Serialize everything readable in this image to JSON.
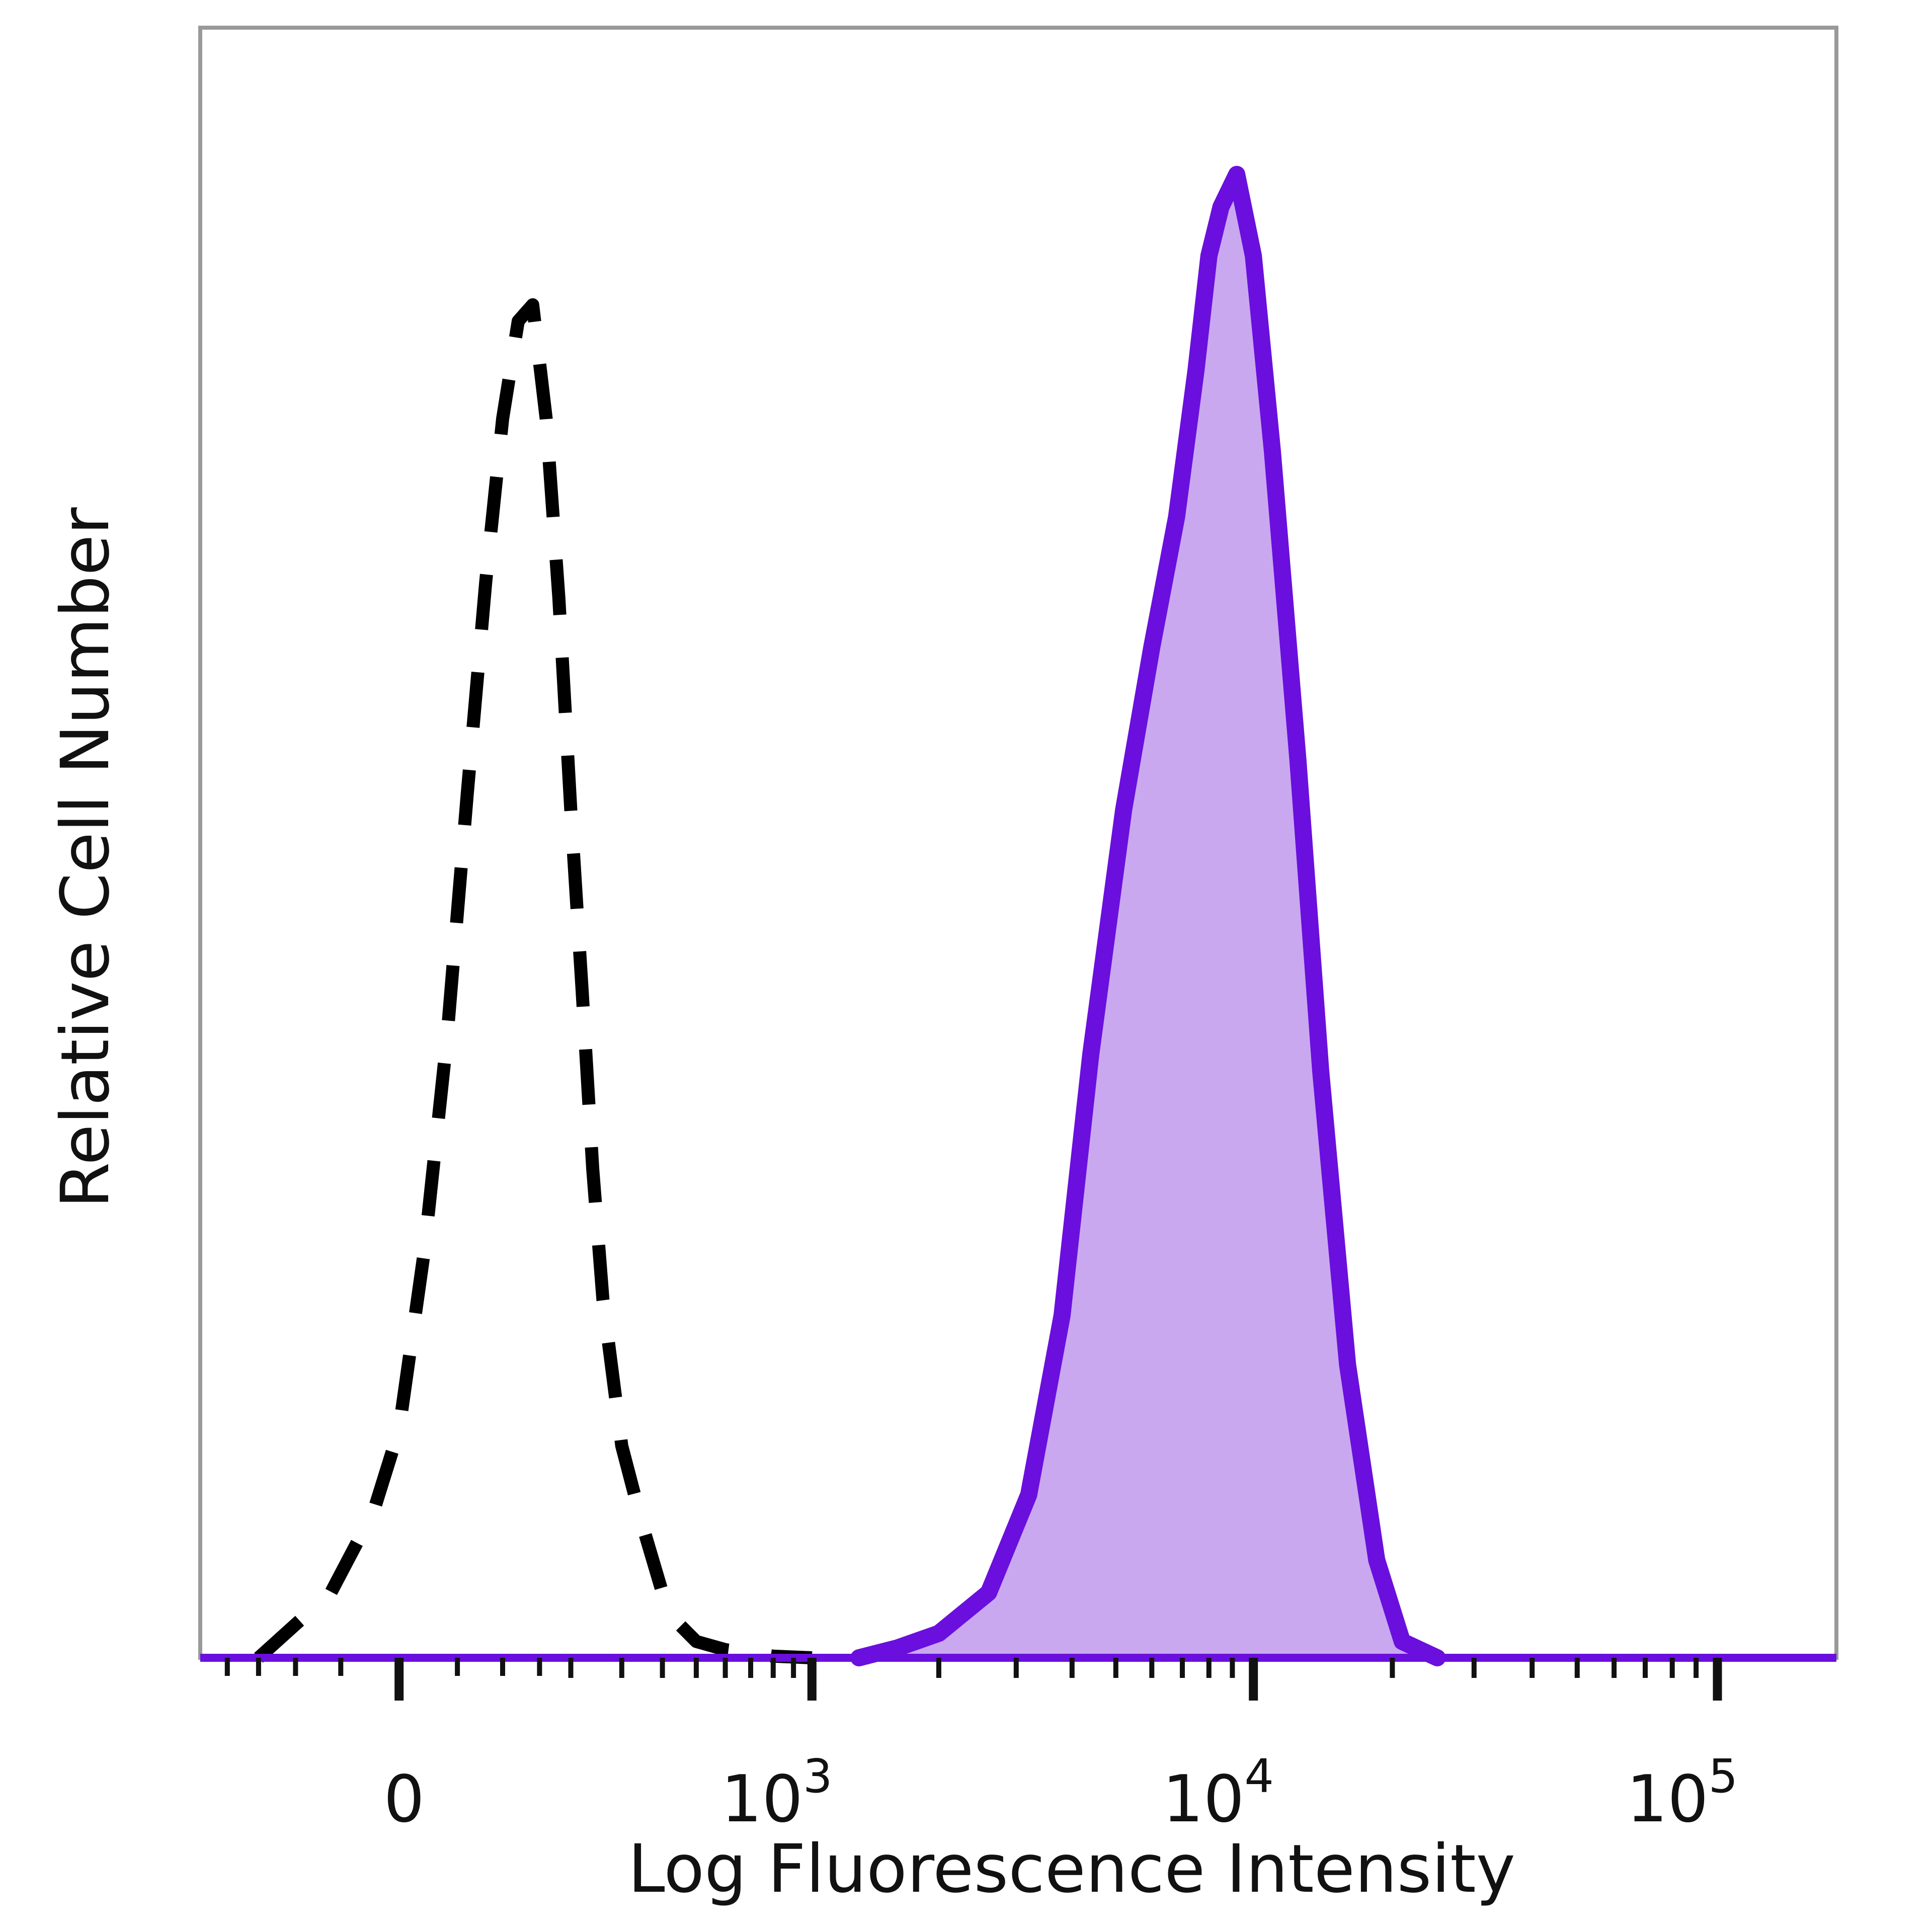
{
  "chart_data": {
    "type": "area",
    "title": "",
    "xlabel": "Log Fluorescence Intensity",
    "ylabel": "Relative Cell Number",
    "x_scale": "biexponential",
    "xlim": [
      -250,
      180000
    ],
    "ylim": [
      0,
      100
    ],
    "grid": false,
    "legend": "none",
    "x_ticks": [
      {
        "value": 0,
        "base": "0",
        "exp": ""
      },
      {
        "value": 1000,
        "base": "10",
        "exp": "3"
      },
      {
        "value": 10000,
        "base": "10",
        "exp": "4"
      },
      {
        "value": 100000,
        "base": "10",
        "exp": "5"
      }
    ],
    "series": [
      {
        "style": "dashed",
        "color": "#000000",
        "fill": "none",
        "x": [
          -150,
          -60,
          -20,
          0,
          20,
          40,
          60,
          80,
          100,
          120,
          140,
          160,
          180,
          200,
          220,
          240,
          260,
          300,
          350,
          400,
          450,
          500,
          600,
          700,
          800,
          1000
        ],
        "y": [
          0,
          4,
          9,
          14,
          25,
          38,
          53,
          66,
          76,
          82,
          83,
          76,
          65,
          52,
          41,
          30,
          22,
          13,
          8,
          4,
          2,
          1,
          0.5,
          0.3,
          0.1,
          0
        ]
      },
      {
        "style": "solid",
        "color": "#6a0fdd",
        "fill": "#c9a8f0",
        "x": [
          1300,
          1600,
          2000,
          2600,
          3200,
          3800,
          4400,
          5200,
          6000,
          6800,
          7500,
          8000,
          8500,
          9200,
          10000,
          11000,
          12500,
          14000,
          16000,
          18500,
          21000,
          25000
        ],
        "y": [
          0,
          0.6,
          1.5,
          4,
          10,
          21,
          37,
          52,
          62,
          70,
          79,
          86,
          89,
          91,
          86,
          74,
          55,
          36,
          18,
          6,
          1,
          0
        ]
      }
    ]
  }
}
